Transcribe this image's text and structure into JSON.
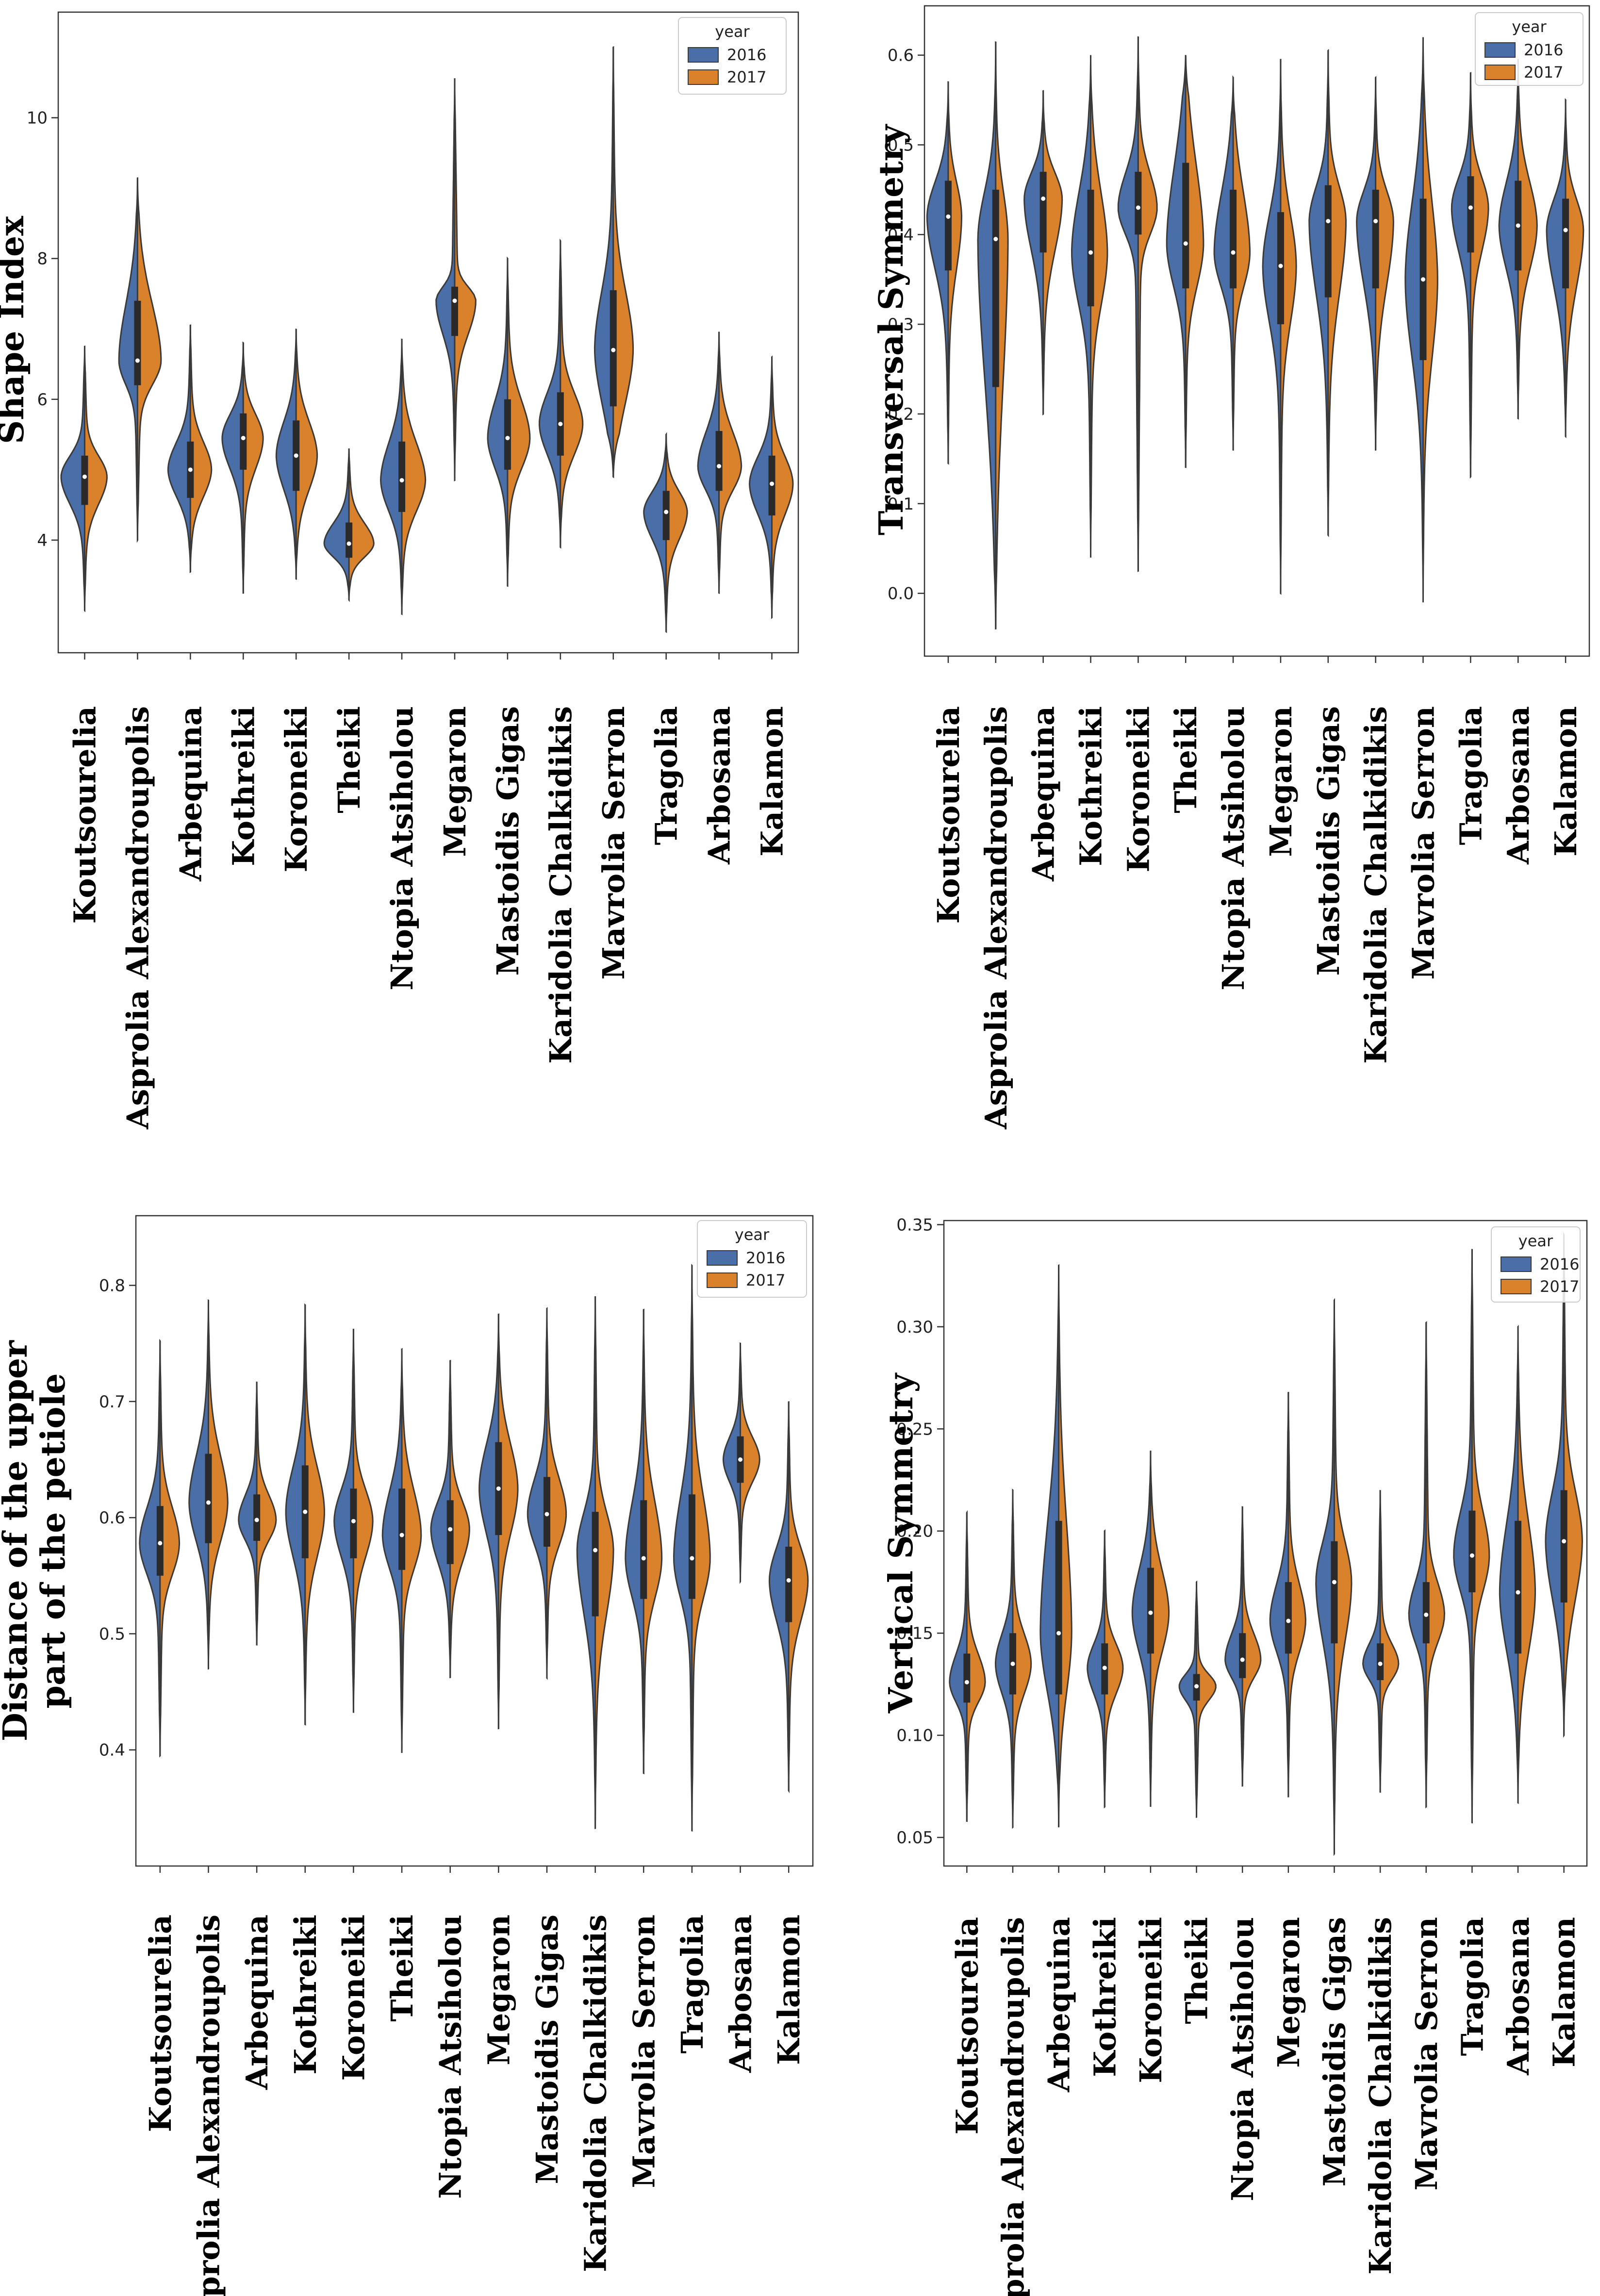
{
  "colors": {
    "c2016": "#4a6fa8",
    "c2017": "#d9822b",
    "edge": "#3a3a3a",
    "box": "#2a2a2a"
  },
  "legend": {
    "title": "year",
    "labels": [
      "2016",
      "2017"
    ]
  },
  "chart_data": [
    {
      "type": "violin",
      "title": "",
      "ylabel": "Shape Index",
      "xlabel": "",
      "ylim": [
        2.4,
        11.5
      ],
      "yticks": [
        4,
        6,
        8,
        10
      ],
      "categories": [
        "Koutsourelia",
        "Asprolia Alexandroupolis",
        "Arbequina",
        "Kothreiki",
        "Koroneiki",
        "Theiki",
        "Ntopia Atsiholou",
        "Megaron",
        "Mastoidis Gigas",
        "Karidolia Chalkidikis",
        "Mavrolia Serron",
        "Tragolia",
        "Arbosana",
        "Kalamon"
      ],
      "series": [
        {
          "name": "2016",
          "median": [
            4.9,
            6.55,
            5.0,
            5.45,
            5.2,
            3.95,
            4.85,
            7.4,
            5.45,
            5.65,
            6.7,
            4.4,
            5.05,
            4.8
          ],
          "q1": [
            4.5,
            6.2,
            4.6,
            5.0,
            4.7,
            3.75,
            4.4,
            6.9,
            5.0,
            5.2,
            5.9,
            4.0,
            4.7,
            4.35
          ],
          "q3": [
            5.2,
            7.4,
            5.4,
            5.8,
            5.7,
            4.25,
            5.4,
            7.6,
            6.0,
            6.1,
            7.55,
            4.7,
            5.55,
            5.2
          ],
          "min": [
            3.0,
            4.0,
            3.55,
            3.25,
            3.45,
            3.15,
            2.95,
            4.85,
            3.35,
            3.9,
            4.9,
            2.7,
            3.25,
            2.9
          ],
          "max": [
            6.75,
            9.15,
            7.05,
            6.8,
            7.0,
            5.3,
            6.85,
            10.55,
            8.0,
            8.25,
            11.0,
            5.5,
            6.95,
            6.6
          ],
          "width": [
            0.95,
            0.75,
            0.9,
            0.85,
            0.8,
            1.0,
            0.85,
            0.75,
            0.8,
            0.85,
            0.75,
            0.9,
            0.85,
            0.9
          ]
        },
        {
          "name": "2017",
          "median": [
            4.9,
            6.55,
            5.0,
            5.45,
            5.2,
            3.95,
            4.85,
            7.4,
            5.45,
            5.65,
            6.7,
            4.4,
            5.05,
            4.8
          ],
          "q1": [
            4.5,
            6.2,
            4.6,
            5.0,
            4.7,
            3.75,
            4.4,
            6.9,
            5.0,
            5.2,
            5.9,
            4.0,
            4.7,
            4.35
          ],
          "q3": [
            5.2,
            7.4,
            5.4,
            5.8,
            5.7,
            4.25,
            5.4,
            7.6,
            6.0,
            6.1,
            7.55,
            4.7,
            5.55,
            5.2
          ],
          "min": [
            3.0,
            4.0,
            3.55,
            3.25,
            3.45,
            3.15,
            2.95,
            4.85,
            3.35,
            3.9,
            4.9,
            2.7,
            3.25,
            2.9
          ],
          "max": [
            6.75,
            9.15,
            7.05,
            6.8,
            7.0,
            5.3,
            6.85,
            10.55,
            8.0,
            8.25,
            11.0,
            5.5,
            6.95,
            6.6
          ],
          "width": [
            0.9,
            0.95,
            0.85,
            0.8,
            0.85,
            1.0,
            0.95,
            0.85,
            0.9,
            0.9,
            0.8,
            0.85,
            0.9,
            0.85
          ]
        }
      ]
    },
    {
      "type": "violin",
      "title": "",
      "ylabel": "Transversal Symmetry",
      "xlabel": "",
      "ylim": [
        -0.07,
        0.655
      ],
      "yticks": [
        0.0,
        0.1,
        0.2,
        0.3,
        0.4,
        0.5,
        0.6
      ],
      "categories": [
        "Koutsourelia",
        "Asprolia Alexandroupolis",
        "Arbequina",
        "Kothreiki",
        "Koroneiki",
        "Theiki",
        "Ntopia Atsiholou",
        "Megaron",
        "Mastoidis Gigas",
        "Karidolia Chalkidikis",
        "Mavrolia Serron",
        "Tragolia",
        "Arbosana",
        "Kalamon"
      ],
      "series": [
        {
          "name": "2016",
          "median": [
            0.42,
            0.395,
            0.44,
            0.38,
            0.43,
            0.39,
            0.38,
            0.365,
            0.415,
            0.415,
            0.35,
            0.43,
            0.41,
            0.405
          ],
          "q1": [
            0.36,
            0.23,
            0.38,
            0.32,
            0.4,
            0.34,
            0.34,
            0.3,
            0.33,
            0.34,
            0.26,
            0.38,
            0.36,
            0.34
          ],
          "q3": [
            0.46,
            0.45,
            0.47,
            0.45,
            0.47,
            0.48,
            0.45,
            0.425,
            0.455,
            0.45,
            0.44,
            0.465,
            0.46,
            0.44
          ],
          "min": [
            0.145,
            -0.04,
            0.2,
            0.04,
            0.025,
            0.14,
            0.16,
            0.0,
            0.065,
            0.16,
            -0.01,
            0.13,
            0.195,
            0.175
          ],
          "max": [
            0.57,
            0.615,
            0.56,
            0.6,
            0.62,
            0.6,
            0.575,
            0.595,
            0.605,
            0.575,
            0.62,
            0.58,
            0.595,
            0.55
          ],
          "width": [
            0.95,
            0.8,
            0.85,
            0.85,
            0.9,
            0.85,
            0.85,
            0.8,
            0.85,
            0.85,
            0.8,
            0.85,
            0.85,
            0.85
          ]
        },
        {
          "name": "2017",
          "median": [
            0.42,
            0.395,
            0.44,
            0.38,
            0.43,
            0.39,
            0.38,
            0.365,
            0.415,
            0.415,
            0.35,
            0.43,
            0.41,
            0.405
          ],
          "q1": [
            0.36,
            0.23,
            0.38,
            0.32,
            0.4,
            0.34,
            0.34,
            0.3,
            0.33,
            0.34,
            0.26,
            0.38,
            0.36,
            0.34
          ],
          "q3": [
            0.46,
            0.45,
            0.47,
            0.45,
            0.47,
            0.48,
            0.45,
            0.425,
            0.455,
            0.45,
            0.44,
            0.465,
            0.46,
            0.44
          ],
          "min": [
            0.145,
            -0.04,
            0.2,
            0.04,
            0.025,
            0.14,
            0.16,
            0.0,
            0.065,
            0.16,
            -0.01,
            0.13,
            0.195,
            0.175
          ],
          "max": [
            0.57,
            0.615,
            0.56,
            0.6,
            0.62,
            0.6,
            0.575,
            0.595,
            0.605,
            0.575,
            0.62,
            0.58,
            0.595,
            0.55
          ],
          "width": [
            0.6,
            0.55,
            0.85,
            0.75,
            0.85,
            0.8,
            0.75,
            0.7,
            0.8,
            0.8,
            0.65,
            0.8,
            0.85,
            0.8
          ]
        }
      ]
    },
    {
      "type": "violin",
      "title": "",
      "ylabel": "Distance of the upper part of the petiole",
      "ylabel_lines": [
        "Distance of the upper",
        "part of the petiole"
      ],
      "xlabel": "",
      "ylim": [
        0.3,
        0.86
      ],
      "yticks": [
        0.4,
        0.5,
        0.6,
        0.7,
        0.8
      ],
      "categories": [
        "Koutsourelia",
        "Asprolia Alexandroupolis",
        "Arbequina",
        "Kothreiki",
        "Koroneiki",
        "Theiki",
        "Ntopia Atsiholou",
        "Megaron",
        "Mastoidis Gigas",
        "Karidolia Chalkidikis",
        "Mavrolia Serron",
        "Tragolia",
        "Arbosana",
        "Kalamon"
      ],
      "series": [
        {
          "name": "2016",
          "median": [
            0.578,
            0.613,
            0.598,
            0.605,
            0.597,
            0.585,
            0.59,
            0.625,
            0.603,
            0.572,
            0.565,
            0.565,
            0.65,
            0.546
          ],
          "q1": [
            0.55,
            0.578,
            0.58,
            0.565,
            0.565,
            0.555,
            0.56,
            0.585,
            0.575,
            0.515,
            0.53,
            0.53,
            0.63,
            0.51
          ],
          "q3": [
            0.61,
            0.655,
            0.62,
            0.645,
            0.625,
            0.625,
            0.615,
            0.665,
            0.635,
            0.605,
            0.615,
            0.62,
            0.67,
            0.575
          ],
          "min": [
            0.395,
            0.47,
            0.49,
            0.422,
            0.432,
            0.398,
            0.462,
            0.418,
            0.462,
            0.332,
            0.38,
            0.33,
            0.545,
            0.365
          ],
          "max": [
            0.752,
            0.787,
            0.717,
            0.783,
            0.762,
            0.745,
            0.735,
            0.775,
            0.78,
            0.79,
            0.779,
            0.817,
            0.75,
            0.7
          ],
          "width": [
            0.9,
            0.85,
            0.8,
            0.85,
            0.85,
            0.85,
            0.85,
            0.85,
            0.85,
            0.8,
            0.8,
            0.8,
            0.75,
            0.85
          ]
        },
        {
          "name": "2017",
          "median": [
            0.578,
            0.613,
            0.598,
            0.605,
            0.597,
            0.585,
            0.59,
            0.625,
            0.603,
            0.572,
            0.565,
            0.565,
            0.65,
            0.546
          ],
          "q1": [
            0.55,
            0.578,
            0.58,
            0.565,
            0.565,
            0.555,
            0.56,
            0.585,
            0.575,
            0.515,
            0.53,
            0.53,
            0.63,
            0.51
          ],
          "q3": [
            0.61,
            0.655,
            0.62,
            0.645,
            0.625,
            0.625,
            0.615,
            0.665,
            0.635,
            0.605,
            0.615,
            0.62,
            0.67,
            0.575
          ],
          "min": [
            0.395,
            0.47,
            0.49,
            0.422,
            0.432,
            0.398,
            0.462,
            0.418,
            0.462,
            0.332,
            0.38,
            0.33,
            0.545,
            0.365
          ],
          "max": [
            0.752,
            0.787,
            0.717,
            0.783,
            0.762,
            0.745,
            0.735,
            0.775,
            0.78,
            0.79,
            0.779,
            0.817,
            0.75,
            0.7
          ],
          "width": [
            0.85,
            0.85,
            0.85,
            0.85,
            0.85,
            0.85,
            0.85,
            0.85,
            0.85,
            0.8,
            0.8,
            0.8,
            0.85,
            0.85
          ]
        }
      ]
    },
    {
      "type": "violin",
      "title": "",
      "ylabel": "Vertical  Symmetry",
      "xlabel": "",
      "ylim": [
        0.036,
        0.352
      ],
      "yticks": [
        0.05,
        0.1,
        0.15,
        0.2,
        0.25,
        0.3,
        0.35
      ],
      "categories": [
        "Koutsourelia",
        "Asprolia Alexandroupolis",
        "Arbequina",
        "Kothreiki",
        "Koroneiki",
        "Theiki",
        "Ntopia Atsiholou",
        "Megaron",
        "Mastoidis Gigas",
        "Karidolia Chalkidikis",
        "Mavrolia Serron",
        "Tragolia",
        "Arbosana",
        "Kalamon"
      ],
      "series": [
        {
          "name": "2016",
          "median": [
            0.126,
            0.135,
            0.15,
            0.133,
            0.16,
            0.124,
            0.137,
            0.156,
            0.175,
            0.135,
            0.159,
            0.188,
            0.17,
            0.195
          ],
          "q1": [
            0.116,
            0.12,
            0.12,
            0.12,
            0.14,
            0.117,
            0.128,
            0.14,
            0.145,
            0.127,
            0.145,
            0.17,
            0.14,
            0.165
          ],
          "q3": [
            0.14,
            0.15,
            0.205,
            0.145,
            0.182,
            0.13,
            0.15,
            0.175,
            0.195,
            0.145,
            0.175,
            0.21,
            0.205,
            0.22
          ],
          "min": [
            0.058,
            0.055,
            0.055,
            0.065,
            0.065,
            0.06,
            0.075,
            0.07,
            0.042,
            0.072,
            0.065,
            0.057,
            0.067,
            0.1
          ],
          "max": [
            0.209,
            0.22,
            0.33,
            0.2,
            0.239,
            0.175,
            0.212,
            0.268,
            0.313,
            0.22,
            0.302,
            0.338,
            0.3,
            0.345
          ],
          "width": [
            0.8,
            0.8,
            0.85,
            0.8,
            0.85,
            0.8,
            0.8,
            0.85,
            0.85,
            0.8,
            0.8,
            0.85,
            0.85,
            0.85
          ]
        },
        {
          "name": "2017",
          "median": [
            0.126,
            0.135,
            0.15,
            0.133,
            0.16,
            0.124,
            0.137,
            0.156,
            0.175,
            0.135,
            0.159,
            0.188,
            0.17,
            0.195
          ],
          "q1": [
            0.116,
            0.12,
            0.12,
            0.12,
            0.14,
            0.117,
            0.128,
            0.14,
            0.145,
            0.127,
            0.145,
            0.17,
            0.14,
            0.165
          ],
          "q3": [
            0.14,
            0.15,
            0.205,
            0.145,
            0.182,
            0.13,
            0.15,
            0.175,
            0.195,
            0.145,
            0.175,
            0.21,
            0.205,
            0.22
          ],
          "min": [
            0.058,
            0.055,
            0.055,
            0.065,
            0.065,
            0.06,
            0.075,
            0.07,
            0.042,
            0.072,
            0.065,
            0.057,
            0.067,
            0.1
          ],
          "max": [
            0.209,
            0.22,
            0.33,
            0.2,
            0.239,
            0.175,
            0.212,
            0.268,
            0.313,
            0.22,
            0.302,
            0.338,
            0.3,
            0.345
          ],
          "width": [
            0.85,
            0.85,
            0.6,
            0.85,
            0.85,
            0.9,
            0.85,
            0.8,
            0.8,
            0.85,
            0.85,
            0.8,
            0.8,
            0.85
          ]
        }
      ]
    }
  ]
}
